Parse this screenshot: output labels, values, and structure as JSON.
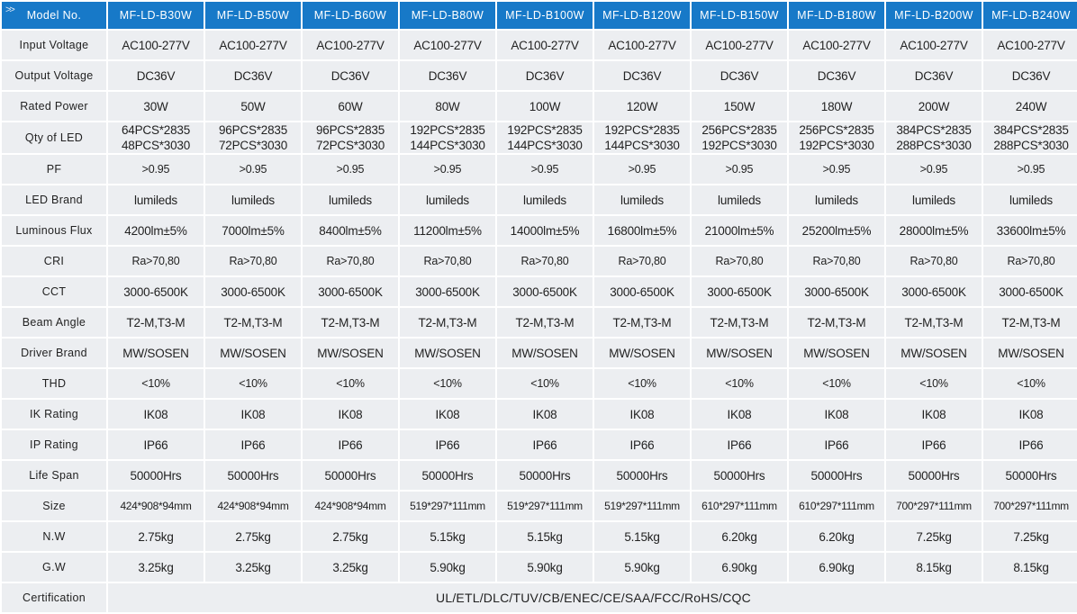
{
  "table": {
    "label_header": "Model No.",
    "models": [
      "MF-LD-B30W",
      "MF-LD-B50W",
      "MF-LD-B60W",
      "MF-LD-B80W",
      "MF-LD-B100W",
      "MF-LD-B120W",
      "MF-LD-B150W",
      "MF-LD-B180W",
      "MF-LD-B200W",
      "MF-LD-B240W"
    ],
    "rows": [
      {
        "label": "Input Voltage",
        "values": [
          "AC100-277V",
          "AC100-277V",
          "AC100-277V",
          "AC100-277V",
          "AC100-277V",
          "AC100-277V",
          "AC100-277V",
          "AC100-277V",
          "AC100-277V",
          "AC100-277V"
        ]
      },
      {
        "label": "Output Voltage",
        "values": [
          "DC36V",
          "DC36V",
          "DC36V",
          "DC36V",
          "DC36V",
          "DC36V",
          "DC36V",
          "DC36V",
          "DC36V",
          "DC36V"
        ]
      },
      {
        "label": "Rated Power",
        "values": [
          "30W",
          "50W",
          "60W",
          "80W",
          "100W",
          "120W",
          "150W",
          "180W",
          "200W",
          "240W"
        ]
      },
      {
        "label": "Qty of LED",
        "values": [
          [
            "64PCS*2835",
            "48PCS*3030"
          ],
          [
            "96PCS*2835",
            "72PCS*3030"
          ],
          [
            "96PCS*2835",
            "72PCS*3030"
          ],
          [
            "192PCS*2835",
            "144PCS*3030"
          ],
          [
            "192PCS*2835",
            "144PCS*3030"
          ],
          [
            "192PCS*2835",
            "144PCS*3030"
          ],
          [
            "256PCS*2835",
            "192PCS*3030"
          ],
          [
            "256PCS*2835",
            "192PCS*3030"
          ],
          [
            "384PCS*2835",
            "288PCS*3030"
          ],
          [
            "384PCS*2835",
            "288PCS*3030"
          ]
        ]
      },
      {
        "label": "PF",
        "values": [
          ">0.95",
          ">0.95",
          ">0.95",
          ">0.95",
          ">0.95",
          ">0.95",
          ">0.95",
          ">0.95",
          ">0.95",
          ">0.95"
        ]
      },
      {
        "label": "LED Brand",
        "values": [
          "lumileds",
          "lumileds",
          "lumileds",
          "lumileds",
          "lumileds",
          "lumileds",
          "lumileds",
          "lumileds",
          "lumileds",
          "lumileds"
        ]
      },
      {
        "label": "Luminous Flux",
        "values": [
          "4200lm±5%",
          "7000lm±5%",
          "8400lm±5%",
          "11200lm±5%",
          "14000lm±5%",
          "16800lm±5%",
          "21000lm±5%",
          "25200lm±5%",
          "28000lm±5%",
          "33600lm±5%"
        ]
      },
      {
        "label": "CRI",
        "values": [
          "Ra>70,80",
          "Ra>70,80",
          "Ra>70,80",
          "Ra>70,80",
          "Ra>70,80",
          "Ra>70,80",
          "Ra>70,80",
          "Ra>70,80",
          "Ra>70,80",
          "Ra>70,80"
        ]
      },
      {
        "label": "CCT",
        "values": [
          "3000-6500K",
          "3000-6500K",
          "3000-6500K",
          "3000-6500K",
          "3000-6500K",
          "3000-6500K",
          "3000-6500K",
          "3000-6500K",
          "3000-6500K",
          "3000-6500K"
        ]
      },
      {
        "label": "Beam Angle",
        "values": [
          "T2-M,T3-M",
          "T2-M,T3-M",
          "T2-M,T3-M",
          "T2-M,T3-M",
          "T2-M,T3-M",
          "T2-M,T3-M",
          "T2-M,T3-M",
          "T2-M,T3-M",
          "T2-M,T3-M",
          "T2-M,T3-M"
        ]
      },
      {
        "label": "Driver Brand",
        "values": [
          "MW/SOSEN",
          "MW/SOSEN",
          "MW/SOSEN",
          "MW/SOSEN",
          "MW/SOSEN",
          "MW/SOSEN",
          "MW/SOSEN",
          "MW/SOSEN",
          "MW/SOSEN",
          "MW/SOSEN"
        ]
      },
      {
        "label": "THD",
        "values": [
          "<10%",
          "<10%",
          "<10%",
          "<10%",
          "<10%",
          "<10%",
          "<10%",
          "<10%",
          "<10%",
          "<10%"
        ]
      },
      {
        "label": "IK Rating",
        "values": [
          "IK08",
          "IK08",
          "IK08",
          "IK08",
          "IK08",
          "IK08",
          "IK08",
          "IK08",
          "IK08",
          "IK08"
        ]
      },
      {
        "label": "IP Rating",
        "values": [
          "IP66",
          "IP66",
          "IP66",
          "IP66",
          "IP66",
          "IP66",
          "IP66",
          "IP66",
          "IP66",
          "IP66"
        ]
      },
      {
        "label": "Life Span",
        "values": [
          "50000Hrs",
          "50000Hrs",
          "50000Hrs",
          "50000Hrs",
          "50000Hrs",
          "50000Hrs",
          "50000Hrs",
          "50000Hrs",
          "50000Hrs",
          "50000Hrs"
        ]
      },
      {
        "label": "Size",
        "values": [
          "424*908*94mm",
          "424*908*94mm",
          "424*908*94mm",
          "519*297*111mm",
          "519*297*111mm",
          "519*297*111mm",
          "610*297*111mm",
          "610*297*111mm",
          "700*297*111mm",
          "700*297*111mm"
        ]
      },
      {
        "label": "N.W",
        "values": [
          "2.75kg",
          "2.75kg",
          "2.75kg",
          "5.15kg",
          "5.15kg",
          "5.15kg",
          "6.20kg",
          "6.20kg",
          "7.25kg",
          "7.25kg"
        ]
      },
      {
        "label": "G.W",
        "values": [
          "3.25kg",
          "3.25kg",
          "3.25kg",
          "5.90kg",
          "5.90kg",
          "5.90kg",
          "6.90kg",
          "6.90kg",
          "8.15kg",
          "8.15kg"
        ]
      }
    ],
    "certification": {
      "label": "Certification",
      "value": "UL/ETL/DLC/TUV/CB/ENEC/CE/SAA/FCC/RoHS/CQC"
    }
  },
  "colors": {
    "header_bg": "#1779c8",
    "cell_bg": "#eceef1",
    "text": "#222222",
    "header_text": "#ffffff"
  }
}
